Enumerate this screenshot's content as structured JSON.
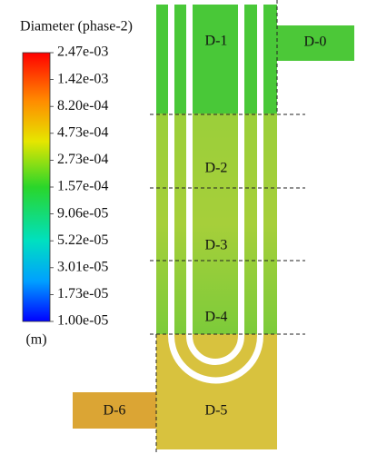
{
  "legend": {
    "title": "Diameter (phase-2)",
    "ticks": [
      "2.47e-03",
      "1.42e-03",
      "8.20e-04",
      "4.73e-04",
      "2.73e-04",
      "1.57e-04",
      "9.06e-05",
      "5.22e-05",
      "3.01e-05",
      "1.73e-05",
      "1.00e-05"
    ],
    "unit": "(m)"
  },
  "regions": [
    {
      "label": "D-0"
    },
    {
      "label": "D-1"
    },
    {
      "label": "D-2"
    },
    {
      "label": "D-3"
    },
    {
      "label": "D-4"
    },
    {
      "label": "D-5"
    },
    {
      "label": "D-6"
    }
  ]
}
